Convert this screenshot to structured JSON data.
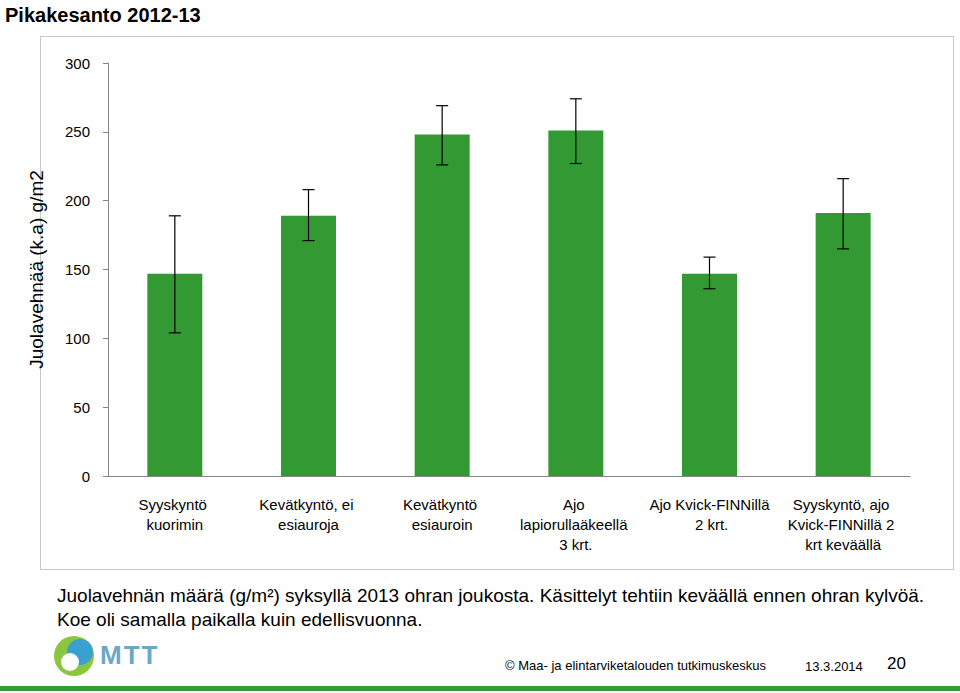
{
  "chart_data": {
    "type": "bar",
    "title": "Pikakesanto 2012-13",
    "y_label": "Juolavehnää (k.a) g/m2",
    "categories": [
      "Syyskyntö kuorimin",
      "Kevätkyntö, ei esiauroja",
      "Kevätkyntö esiauroin",
      "Ajo lapiorullaäkeellä 3 krt.",
      "Ajo Kvick-FINNillä 2 krt.",
      "Syyskyntö, ajo Kvick-FINNillä 2 krt keväällä"
    ],
    "values": [
      147,
      189,
      248,
      251,
      147,
      191
    ],
    "error_low": [
      104,
      171,
      226,
      227,
      136,
      165
    ],
    "error_high": [
      189,
      208,
      269,
      274,
      159,
      216
    ],
    "color": "#339933",
    "ylim": [
      0,
      300
    ],
    "yticks": [
      0,
      50,
      100,
      150,
      200,
      250,
      300
    ],
    "grid": false,
    "caption": "Juolavehnän määrä (g/m²) syksyllä 2013 ohran joukosta. Käsittelyt tehtiin keväällä ennen ohran kylvöä. Koe oli samalla paikalla kuin edellisvuonna.",
    "logo": "MTT",
    "footer": {
      "copyright": "© Maa- ja elintarviketalouden tutkimuskeskus",
      "date": "13.3.2014",
      "page": 20
    }
  }
}
